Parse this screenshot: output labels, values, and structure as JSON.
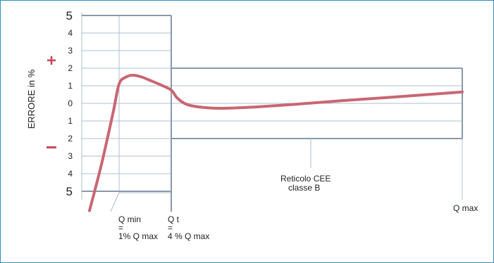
{
  "chart_data": {
    "type": "line",
    "title": "",
    "ylabel": "ERRORE in %",
    "y_tick_labels": [
      "5",
      "4",
      "3",
      "2",
      "1",
      "0",
      "1",
      "2",
      "3",
      "4",
      "5"
    ],
    "y_tick_values": [
      5,
      4,
      3,
      2,
      1,
      0,
      -1,
      -2,
      -3,
      -4,
      -5
    ],
    "ylim": [
      -5.8,
      5
    ],
    "plus_sign": "+",
    "minus_sign": "−",
    "x_labels": [
      {
        "id": "qmin",
        "x": 0.01,
        "lines": [
          "Q min",
          "=",
          "1% Q max"
        ]
      },
      {
        "id": "qt",
        "x": 0.04,
        "lines": [
          "Q t",
          "=",
          "4 % Q max"
        ]
      },
      {
        "id": "qmax",
        "x": 1.0,
        "lines": [
          "Q max"
        ]
      }
    ],
    "annotation": {
      "lines": [
        "Reticolo CEE",
        "classe B"
      ],
      "x": 0.32,
      "y": -2
    },
    "tolerance_envelope": [
      {
        "name": "",
        "from": 0.0,
        "to": 0.04,
        "lower": -5,
        "upper": 5
      },
      {
        "name": "",
        "from": 0.04,
        "to": 1.0,
        "lower": -2,
        "upper": 2
      }
    ],
    "series": [
      {
        "name": "",
        "color": "#c96672",
        "points": [
          [
            0.0,
            -6.1
          ],
          [
            0.004,
            -3.5
          ],
          [
            0.008,
            -0.5
          ],
          [
            0.01,
            1.1
          ],
          [
            0.014,
            1.5
          ],
          [
            0.018,
            1.6
          ],
          [
            0.023,
            1.5
          ],
          [
            0.028,
            1.3
          ],
          [
            0.034,
            1.05
          ],
          [
            0.04,
            0.75
          ],
          [
            0.06,
            0.3
          ],
          [
            0.09,
            -0.05
          ],
          [
            0.13,
            -0.2
          ],
          [
            0.2,
            -0.28
          ],
          [
            0.3,
            -0.22
          ],
          [
            0.45,
            -0.05
          ],
          [
            0.6,
            0.15
          ],
          [
            0.75,
            0.33
          ],
          [
            0.9,
            0.52
          ],
          [
            1.0,
            0.65
          ]
        ]
      }
    ],
    "colors": {
      "grid": "#aebfd0",
      "frame": "#8a98aa",
      "border": "#2f8fc6",
      "sign": "#c84a5c"
    }
  }
}
